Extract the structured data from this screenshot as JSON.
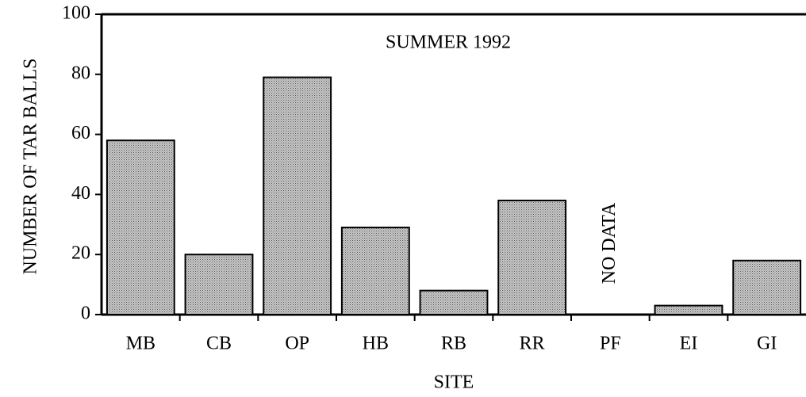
{
  "chart_data": {
    "type": "bar",
    "title": "SUMMER 1992",
    "x_label": "SITE",
    "y_label": "NUMBER OF TAR BALLS",
    "annotation": "NO DATA",
    "categories": [
      "MB",
      "CB",
      "OP",
      "HB",
      "RB",
      "RR",
      "PF",
      "EI",
      "GI"
    ],
    "values": [
      58,
      20,
      79,
      29,
      8,
      38,
      null,
      3,
      18
    ],
    "color": "#a8a8a8",
    "ylim": [
      0,
      100
    ],
    "yticks": [
      0,
      20,
      40,
      60,
      80,
      100
    ],
    "grid": false
  }
}
